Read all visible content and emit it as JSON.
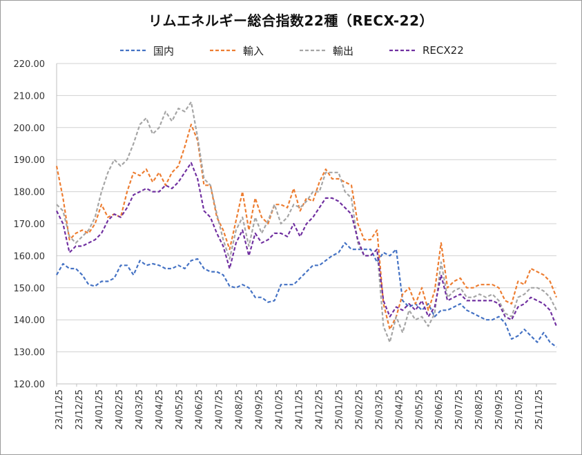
{
  "chart_data": {
    "type": "line",
    "title": "リムエネルギー総合指数22種（RECX-22）",
    "ylim": [
      120,
      220
    ],
    "yticks": [
      "120.00",
      "130.00",
      "140.00",
      "150.00",
      "160.00",
      "170.00",
      "180.00",
      "190.00",
      "200.00",
      "210.00",
      "220.00"
    ],
    "xticks": [
      "23/11/25",
      "23/12/25",
      "24/01/25",
      "24/02/25",
      "24/03/25",
      "24/04/25",
      "24/05/25",
      "24/06/25",
      "24/07/25",
      "24/08/25",
      "24/09/25",
      "24/10/25",
      "24/11/25",
      "24/12/25",
      "25/01/25",
      "25/02/25",
      "25/03/25",
      "25/04/25",
      "25/05/25",
      "25/06/25",
      "25/07/25",
      "25/08/25",
      "25/09/25",
      "25/10/25",
      "25/11/25"
    ],
    "grid": true,
    "legend_position": "top",
    "series": [
      {
        "name": "国内",
        "color": "#4472C4",
        "values": [
          154,
          157.5,
          156,
          156,
          154,
          151,
          150.5,
          152,
          152,
          153,
          157,
          157,
          154,
          158.5,
          157,
          157.5,
          157,
          156,
          156,
          157,
          156,
          158.5,
          159,
          156,
          155,
          155,
          154,
          150.5,
          150,
          151,
          150,
          147,
          147,
          145.5,
          146,
          151,
          151,
          151,
          153,
          155,
          157,
          157,
          158.5,
          160,
          161,
          164,
          162,
          162,
          162,
          162,
          158,
          161,
          160,
          162,
          146,
          144,
          145,
          143,
          145,
          141,
          143,
          143,
          144,
          145,
          143,
          142,
          141,
          140,
          140,
          141,
          139,
          134,
          135,
          137,
          135,
          133,
          136,
          133,
          131.5
        ]
      },
      {
        "name": "輸入",
        "color": "#ED7D31",
        "values": [
          188,
          178,
          165,
          167,
          168,
          167,
          170,
          176,
          172,
          173,
          172,
          180,
          186,
          185,
          187,
          183,
          186,
          182,
          186,
          188,
          194,
          201,
          196,
          182,
          182,
          172,
          168,
          162,
          171,
          180,
          168,
          178,
          172,
          170,
          176,
          176,
          175,
          181,
          174,
          178,
          177,
          183,
          187,
          184,
          184,
          183,
          182,
          170,
          165,
          165,
          168,
          145,
          137,
          141,
          148,
          150,
          145,
          150,
          143,
          149,
          164,
          150,
          152,
          153,
          150,
          150,
          151,
          151,
          151,
          150,
          146,
          145,
          152,
          151,
          156,
          155,
          154,
          152,
          147
        ]
      },
      {
        "name": "輸出",
        "color": "#A5A5A5",
        "values": [
          176,
          174,
          166,
          164,
          166,
          168,
          172,
          180,
          186,
          190,
          188,
          190,
          195,
          201,
          203,
          198,
          200,
          205,
          202,
          206,
          205,
          208,
          197,
          184,
          182,
          173,
          165,
          159,
          168,
          172,
          163,
          172,
          167,
          171,
          176,
          170,
          172,
          176,
          175,
          177,
          180,
          180,
          186,
          186,
          186,
          180,
          178,
          164,
          160,
          160,
          162,
          138,
          133,
          141,
          136,
          143,
          140,
          141,
          138,
          142,
          158,
          147,
          149,
          150,
          147,
          147,
          148,
          147,
          148,
          146,
          142,
          141,
          147,
          148,
          150,
          150,
          149,
          147,
          143
        ]
      },
      {
        "name": "RECX22",
        "color": "#7030A0",
        "values": [
          174,
          170,
          161,
          163,
          163,
          164,
          165,
          167,
          171,
          173,
          172,
          175,
          179,
          180,
          181,
          180,
          180,
          182,
          181,
          183,
          186,
          189,
          184,
          174,
          172,
          167,
          163,
          156,
          164,
          168,
          160,
          167,
          164,
          165,
          167,
          167,
          166,
          170,
          166,
          170,
          172,
          175,
          178,
          178,
          177,
          175,
          173,
          165,
          160,
          160,
          162,
          146,
          141,
          144,
          143,
          145,
          143,
          146,
          141,
          144,
          154,
          146,
          147,
          148,
          146,
          146,
          146,
          146,
          146,
          145,
          141,
          140,
          144,
          145,
          147,
          146,
          145,
          143,
          138
        ]
      }
    ]
  }
}
